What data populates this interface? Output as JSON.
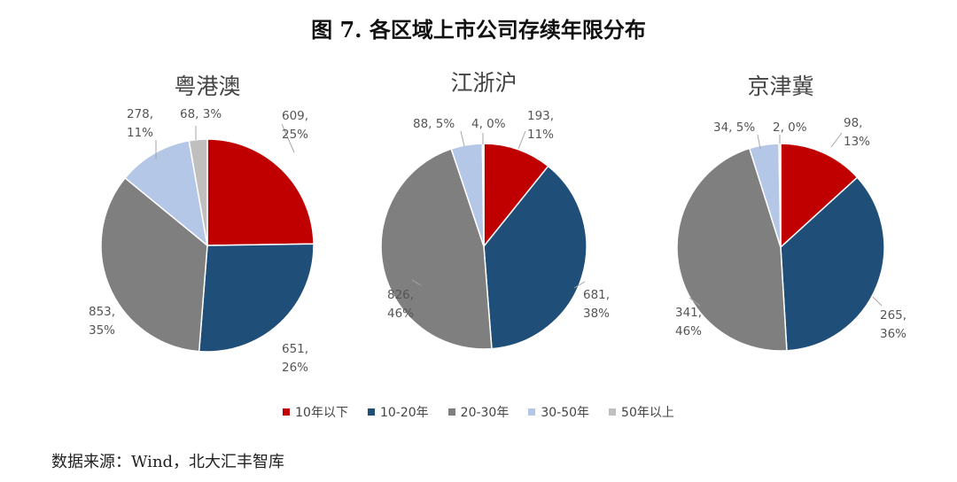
{
  "figure_title": "图 7.  各区域上市公司存续年限分布",
  "source": "数据来源：Wind，北大汇丰智库",
  "colors": [
    "#c00000",
    "#1f4e79",
    "#7f7f7f",
    "#b4c7e7",
    "#bfbfbf"
  ],
  "chart_data": [
    {
      "type": "pie",
      "title": "粤港澳",
      "categories": [
        "10年以下",
        "10-20年",
        "20-30年",
        "30-50年",
        "50年以上"
      ],
      "values": [
        609,
        651,
        853,
        278,
        68
      ],
      "labels": [
        [
          "609,",
          "25%"
        ],
        [
          "651,",
          "26%"
        ],
        [
          "853,",
          "35%"
        ],
        [
          "278,",
          "11%"
        ],
        [
          "68, 3%"
        ]
      ]
    },
    {
      "type": "pie",
      "title": "江浙沪",
      "categories": [
        "10年以下",
        "10-20年",
        "20-30年",
        "30-50年",
        "50年以上"
      ],
      "values": [
        193,
        681,
        826,
        88,
        4
      ],
      "labels": [
        [
          "193,",
          "11%"
        ],
        [
          "681,",
          "38%"
        ],
        [
          "826,",
          "46%"
        ],
        [
          "88, 5%"
        ],
        [
          "4, 0%"
        ]
      ]
    },
    {
      "type": "pie",
      "title": "京津冀",
      "categories": [
        "10年以下",
        "10-20年",
        "20-30年",
        "30-50年",
        "50年以上"
      ],
      "values": [
        98,
        265,
        341,
        34,
        2
      ],
      "labels": [
        [
          "98,",
          "13%"
        ],
        [
          "265,",
          "36%"
        ],
        [
          "341,",
          "46%"
        ],
        [
          "34, 5%"
        ],
        [
          "2, 0%"
        ]
      ]
    }
  ],
  "legend": [
    "10年以下",
    "10-20年",
    "20-30年",
    "30-50年",
    "50年以上"
  ]
}
